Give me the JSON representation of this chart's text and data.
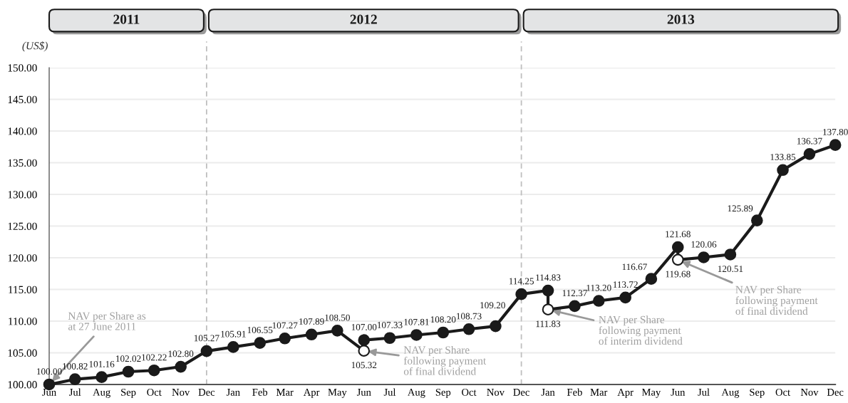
{
  "chart_data": {
    "type": "line",
    "ylabel": "(US$)",
    "xlim": [
      "2011-06",
      "2013-12"
    ],
    "xticks": [
      {
        "value": "2011-06",
        "label": "Jun"
      },
      {
        "value": "2011-07",
        "label": "Jul"
      },
      {
        "value": "2011-08",
        "label": "Aug"
      },
      {
        "value": "2011-09",
        "label": "Sep"
      },
      {
        "value": "2011-10",
        "label": "Oct"
      },
      {
        "value": "2011-11",
        "label": "Nov"
      },
      {
        "value": "2011-12",
        "label": "Dec"
      },
      {
        "value": "2012-01",
        "label": "Jan"
      },
      {
        "value": "2012-02",
        "label": "Feb"
      },
      {
        "value": "2012-03",
        "label": "Mar"
      },
      {
        "value": "2012-04",
        "label": "Apr"
      },
      {
        "value": "2012-05",
        "label": "May"
      },
      {
        "value": "2012-06",
        "label": "Jun"
      },
      {
        "value": "2012-07",
        "label": "Jul"
      },
      {
        "value": "2012-08",
        "label": "Aug"
      },
      {
        "value": "2012-09",
        "label": "Sep"
      },
      {
        "value": "2012-10",
        "label": "Oct"
      },
      {
        "value": "2012-11",
        "label": "Nov"
      },
      {
        "value": "2012-12",
        "label": "Dec"
      },
      {
        "value": "2013-01",
        "label": "Jan"
      },
      {
        "value": "2013-02",
        "label": "Feb"
      },
      {
        "value": "2013-03",
        "label": "Mar"
      },
      {
        "value": "2013-04",
        "label": "Apr"
      },
      {
        "value": "2013-05",
        "label": "May"
      },
      {
        "value": "2013-06",
        "label": "Jun"
      },
      {
        "value": "2013-07",
        "label": "Jul"
      },
      {
        "value": "2013-08",
        "label": "Aug"
      },
      {
        "value": "2013-09",
        "label": "Sep"
      },
      {
        "value": "2013-10",
        "label": "Oct"
      },
      {
        "value": "2013-11",
        "label": "Nov"
      },
      {
        "value": "2013-12",
        "label": "Dec"
      }
    ],
    "ylim": [
      100,
      150
    ],
    "yticks": [
      {
        "value": 100,
        "label": "100.00"
      },
      {
        "value": 105,
        "label": "105.00"
      },
      {
        "value": 110,
        "label": "110.00"
      },
      {
        "value": 115,
        "label": "115.00"
      },
      {
        "value": 120,
        "label": "120.00"
      },
      {
        "value": 125,
        "label": "125.00"
      },
      {
        "value": 130,
        "label": "130.00"
      },
      {
        "value": 135,
        "label": "135.00"
      },
      {
        "value": 140,
        "label": "140.00"
      },
      {
        "value": 145,
        "label": "145.00"
      },
      {
        "value": 150,
        "label": "150.00"
      }
    ],
    "grid": "y",
    "series": [
      {
        "color": "#1a1a1a",
        "line_style": "solid",
        "x": [
          "2011-06",
          "2011-07",
          "2011-08",
          "2011-09",
          "2011-10",
          "2011-11",
          "2011-12",
          "2012-01",
          "2012-02",
          "2012-03",
          "2012-04",
          "2012-05",
          "2012-06",
          "2012-06",
          "2012-07",
          "2012-08",
          "2012-09",
          "2012-10",
          "2012-11",
          "2012-12",
          "2013-01",
          "2013-01",
          "2013-02",
          "2013-03",
          "2013-04",
          "2013-05",
          "2013-06",
          "2013-06",
          "2013-07",
          "2013-08",
          "2013-09",
          "2013-10",
          "2013-11",
          "2013-12"
        ],
        "values": [
          100.0,
          100.82,
          101.16,
          102.02,
          102.22,
          102.8,
          105.27,
          105.91,
          106.55,
          107.27,
          107.89,
          108.5,
          105.32,
          107.0,
          107.33,
          107.81,
          108.2,
          108.73,
          109.2,
          114.25,
          114.83,
          111.83,
          112.37,
          113.2,
          113.72,
          116.67,
          121.68,
          119.68,
          120.06,
          120.51,
          125.89,
          133.85,
          136.37,
          137.8
        ]
      },
      {
        "type": "scatter",
        "color": "#1a1a1a",
        "marker": "circle",
        "x": [
          "2011-06",
          "2011-07",
          "2011-08",
          "2011-09",
          "2011-10",
          "2011-11",
          "2011-12",
          "2012-01",
          "2012-02",
          "2012-03",
          "2012-04",
          "2012-05",
          "2012-06",
          "2012-07",
          "2012-08",
          "2012-09",
          "2012-10",
          "2012-11",
          "2012-12",
          "2013-01",
          "2013-02",
          "2013-03",
          "2013-04",
          "2013-05",
          "2013-06",
          "2013-07",
          "2013-08",
          "2013-09",
          "2013-10",
          "2013-11",
          "2013-12"
        ],
        "values": [
          100.0,
          100.82,
          101.16,
          102.02,
          102.22,
          102.8,
          105.27,
          105.91,
          106.55,
          107.27,
          107.89,
          108.5,
          107.0,
          107.33,
          107.81,
          108.2,
          108.73,
          109.2,
          114.25,
          114.83,
          112.37,
          113.2,
          113.72,
          116.67,
          121.68,
          120.06,
          120.51,
          125.89,
          133.85,
          136.37,
          137.8
        ],
        "value_labels": [
          "100.00",
          "100.82",
          "101.16",
          "102.02",
          "102.22",
          "102.80",
          "105.27",
          "105.91",
          "106.55",
          "107.27",
          "107.89",
          "108.50",
          "107.00",
          "107.33",
          "107.81",
          "108.20",
          "108.73",
          "109.20",
          "114.25",
          "114.83",
          "112.37",
          "113.20",
          "113.72",
          "116.67",
          "121.68",
          "120.06",
          "120.51",
          "125.89",
          "133.85",
          "136.37",
          "137.80"
        ]
      },
      {
        "type": "scatter",
        "color": "#ffffff",
        "marker": "circle",
        "x": [
          "2012-06",
          "2013-01",
          "2013-06"
        ],
        "values": [
          105.32,
          111.83,
          119.68
        ],
        "value_labels": [
          "105.32",
          "111.83",
          "119.68"
        ]
      }
    ],
    "ref_lines": [
      {
        "axis": "x",
        "value": "2011-12",
        "color": "#bfbfbf",
        "line_style": "dashed"
      },
      {
        "axis": "x",
        "value": "2012-12",
        "color": "#bfbfbf",
        "line_style": "dashed"
      }
    ],
    "annotations": [
      "2011",
      "2012",
      "2013",
      {
        "text": "NAV per Share as\nat 27 June 2011",
        "x": "2011-06",
        "y": 100.0
      },
      {
        "text": "NAV per Share\nfollowing payment\nof final dividend",
        "x": "2012-06",
        "y": 105.32
      },
      {
        "text": "NAV per Share\nfollowing payment\nof interim dividend",
        "x": "2013-01",
        "y": 111.83
      },
      {
        "text": "NAV per Share\nfollowing payment\nof final dividend",
        "x": "2013-06",
        "y": 119.68
      }
    ]
  }
}
